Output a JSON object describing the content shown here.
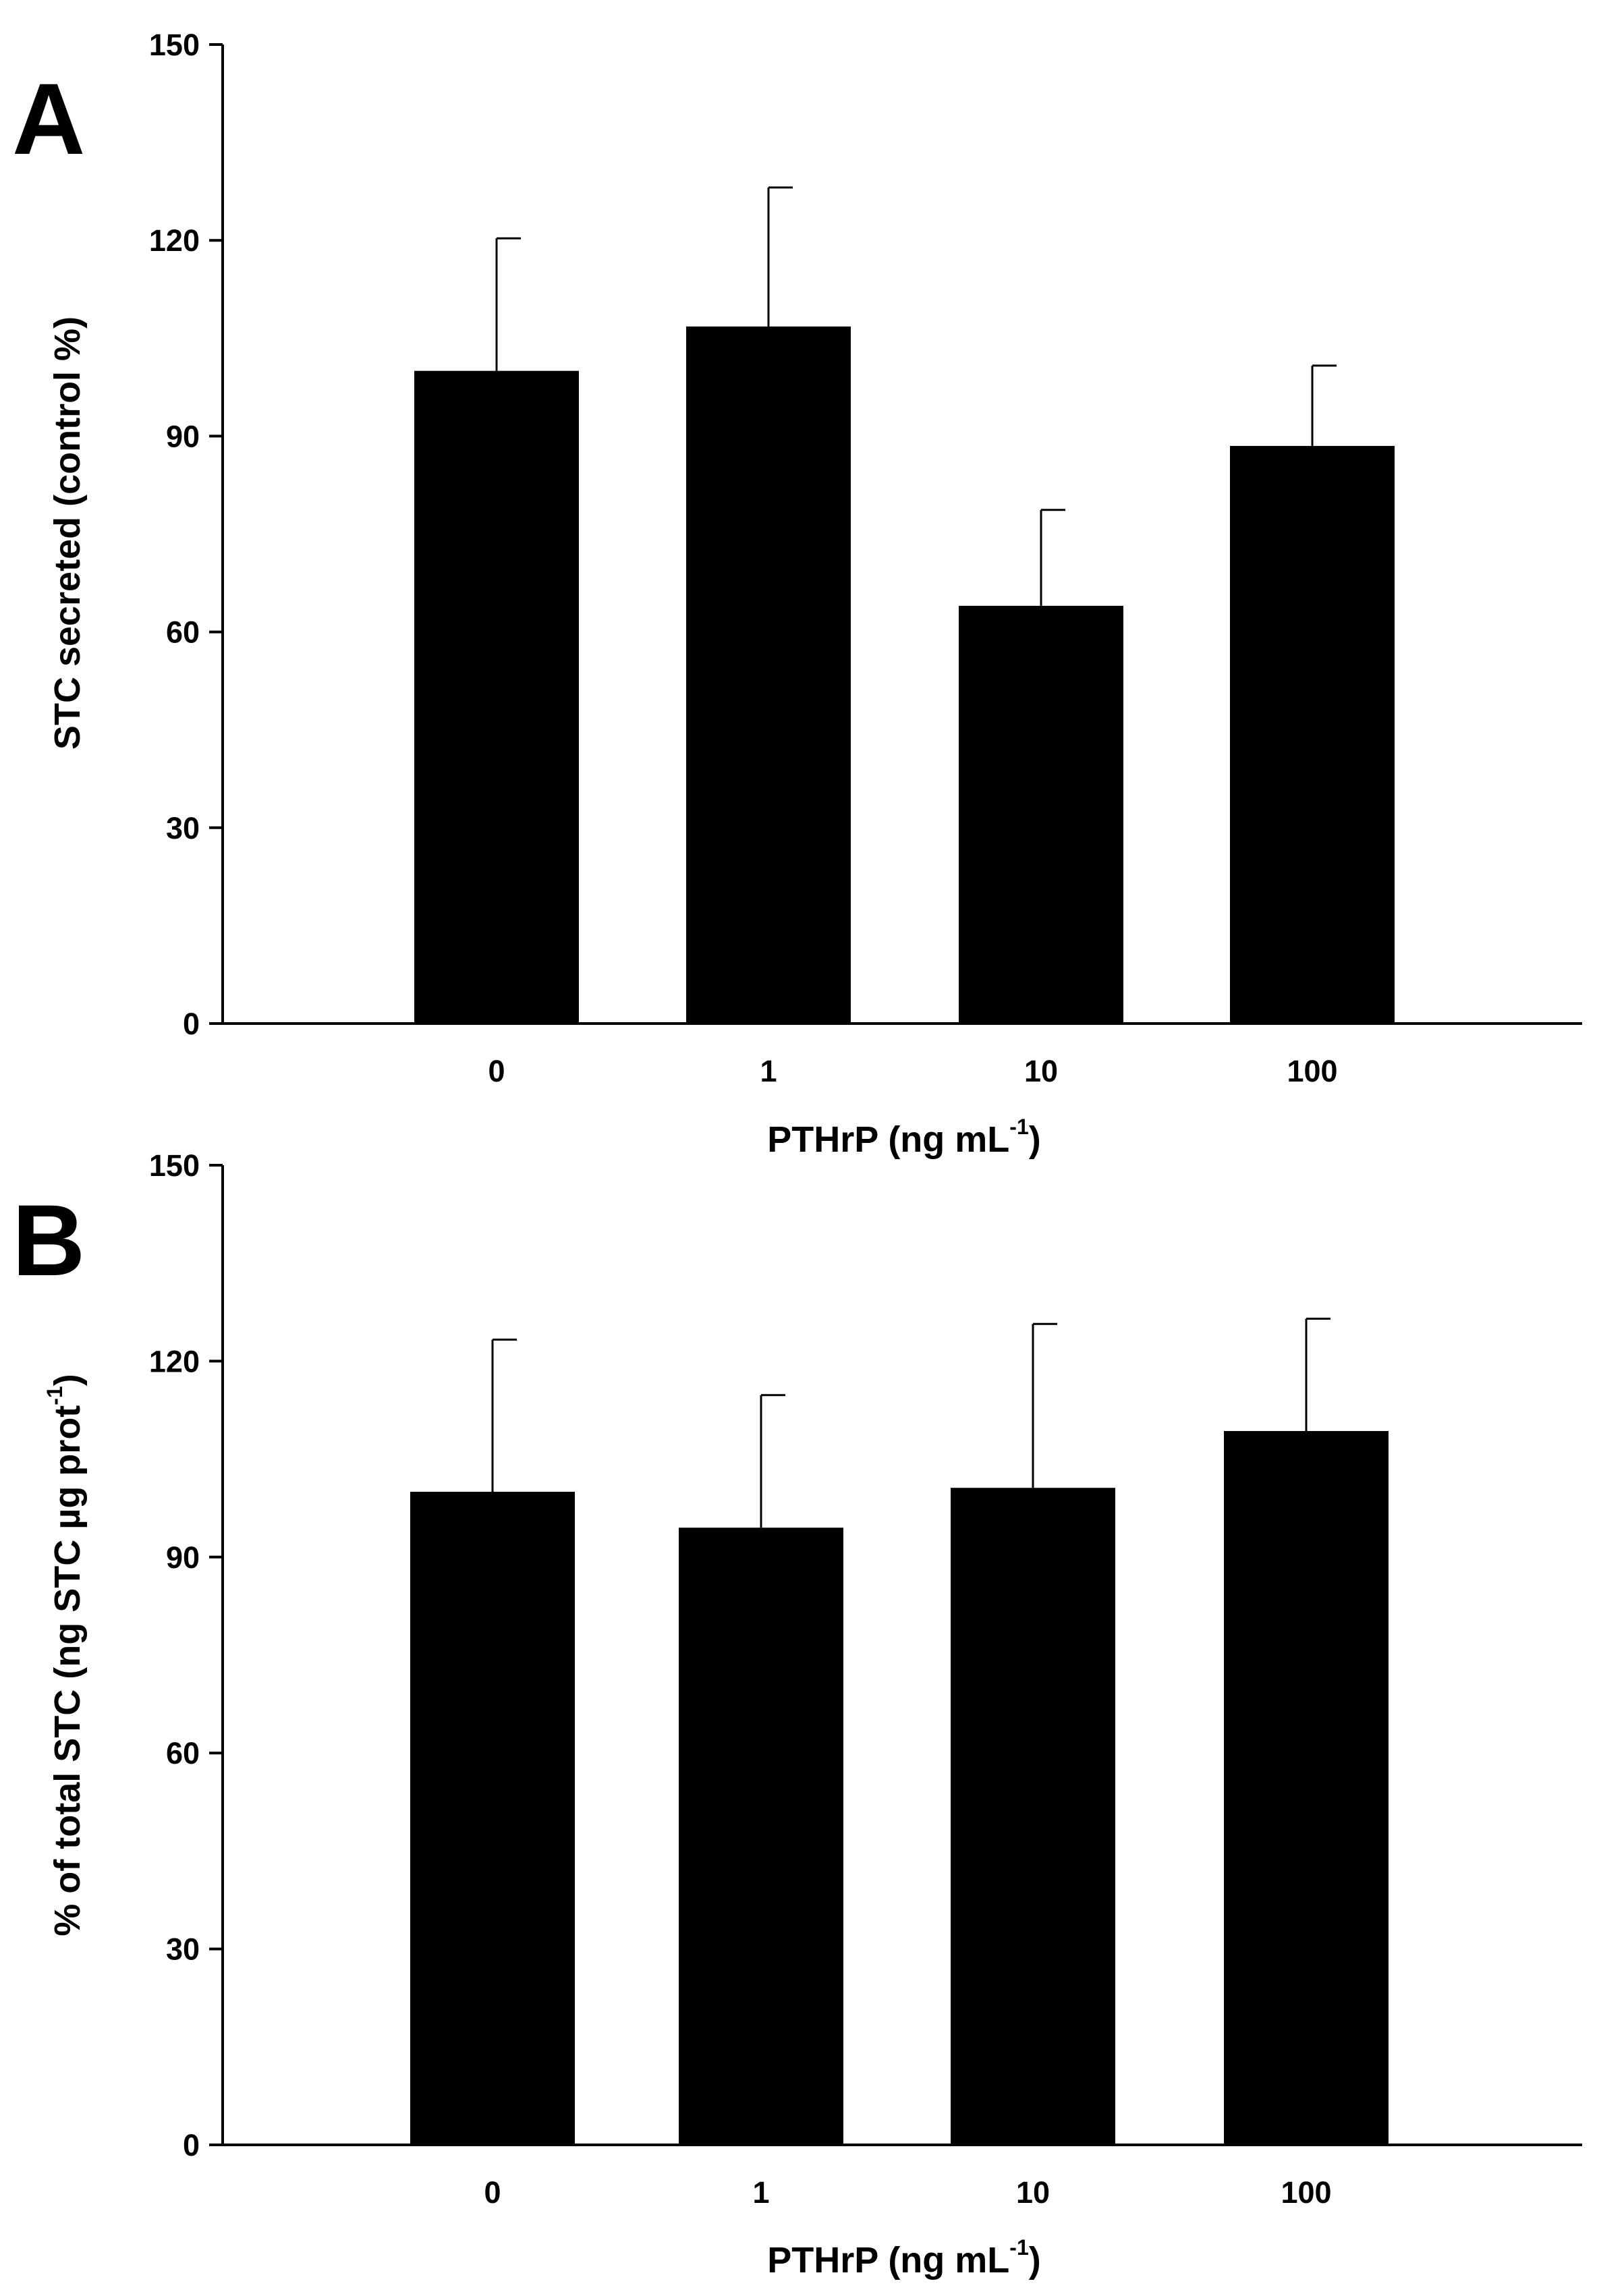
{
  "chart_data": [
    {
      "type": "bar",
      "panel": "A",
      "categories": [
        "0",
        "1",
        "10",
        "100"
      ],
      "values": [
        100,
        106.8,
        64,
        88.5
      ],
      "errors": [
        20.3,
        21.3,
        14.7,
        12.3
      ],
      "xlabel": "PTHrP (ng mL",
      "xlabel_sup": "-1",
      "xlabel_suffix": ")",
      "ylabel": "STC secreted (control %)",
      "ylim": [
        0,
        150
      ],
      "yticks": [
        "0",
        "30",
        "60",
        "90",
        "120",
        "150"
      ],
      "bar_color": "#000000",
      "grid": false
    },
    {
      "type": "bar",
      "panel": "B",
      "categories": [
        "0",
        "1",
        "10",
        "100"
      ],
      "values": [
        100,
        94.5,
        100.6,
        109.3
      ],
      "errors": [
        23.3,
        20.3,
        25.1,
        17.2
      ],
      "xlabel": "PTHrP (ng mL",
      "xlabel_sup": "-1",
      "xlabel_suffix": ")",
      "ylabel": "% of total STC (ng STC µg prot",
      "ylabel_sup": "-1",
      "ylabel_suffix": ")",
      "ylim": [
        0,
        150
      ],
      "yticks": [
        "0",
        "30",
        "60",
        "90",
        "120",
        "150"
      ],
      "bar_color": "#000000",
      "grid": false
    }
  ]
}
